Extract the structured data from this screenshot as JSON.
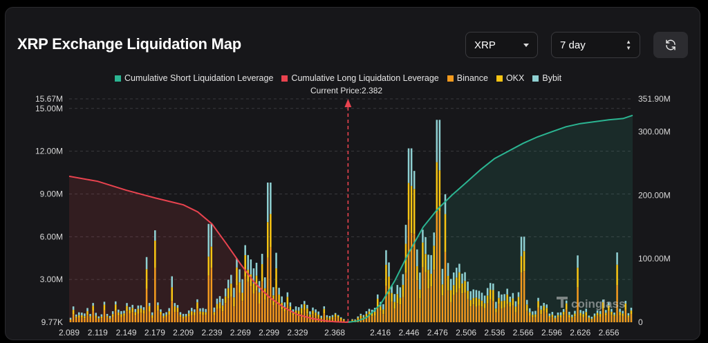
{
  "header": {
    "title": "XRP Exchange Liquidation Map",
    "coin_select": "XRP",
    "range_select": "7 day",
    "up_glyph": "▲",
    "down_glyph": "▼"
  },
  "legend": [
    {
      "label": "Cumulative Short Liquidation Leverage",
      "color": "#2bb592"
    },
    {
      "label": "Cumulative Long Liquidation Leverage",
      "color": "#e9434f"
    },
    {
      "label": "Binance",
      "color": "#f39a1e"
    },
    {
      "label": "OKX",
      "color": "#f7c413"
    },
    {
      "label": "Bybit",
      "color": "#8fd0d2"
    }
  ],
  "current_price_label": "Current Price:2.382",
  "watermark": "coinglass",
  "icons": {
    "refresh": "refresh-icon",
    "watermark_logo": "coinglass-logo-icon"
  },
  "chart_data": {
    "type": "bar",
    "current_price": 2.382,
    "x_ticks": [
      "2.089",
      "2.119",
      "2.149",
      "2.179",
      "2.209",
      "2.239",
      "2.269",
      "2.299",
      "2.329",
      "2.368",
      "2.416",
      "2.446",
      "2.476",
      "2.506",
      "2.536",
      "2.566",
      "2.596",
      "2.626",
      "2.656"
    ],
    "y_left_ticks": [
      "9.77K",
      "3.00M",
      "6.00M",
      "9.00M",
      "12.00M",
      "15.00M",
      "15.67M"
    ],
    "y_right_ticks": [
      "0",
      "100.00M",
      "200.00M",
      "300.00M",
      "351.90M"
    ],
    "y_left_range": [
      0,
      15.67
    ],
    "y_right_range": [
      0,
      351.9
    ],
    "series": [
      {
        "name": "Cumulative Long Liquidation Leverage",
        "type": "area",
        "axis": "right",
        "x": [
          2.089,
          2.119,
          2.149,
          2.179,
          2.209,
          2.224,
          2.239,
          2.254,
          2.269,
          2.284,
          2.299,
          2.314,
          2.329,
          2.344,
          2.359,
          2.368,
          2.376,
          2.382
        ],
        "y": [
          230,
          222,
          208,
          196,
          185,
          174,
          155,
          124,
          92,
          62,
          40,
          24,
          12,
          6,
          2,
          0.8,
          0.2,
          0
        ]
      },
      {
        "name": "Cumulative Short Liquidation Leverage",
        "type": "area",
        "axis": "right",
        "x": [
          2.382,
          2.392,
          2.402,
          2.416,
          2.431,
          2.446,
          2.461,
          2.476,
          2.491,
          2.506,
          2.521,
          2.536,
          2.551,
          2.566,
          2.581,
          2.596,
          2.611,
          2.626,
          2.641,
          2.656,
          2.671,
          2.681
        ],
        "y": [
          0,
          2,
          8,
          28,
          65,
          110,
          150,
          178,
          200,
          220,
          240,
          258,
          270,
          282,
          292,
          300,
          308,
          313,
          316,
          319,
          321,
          326
        ]
      },
      {
        "name": "Binance",
        "axis": "left",
        "note": "stacked per-price-level bars (see generated series)"
      },
      {
        "name": "OKX",
        "axis": "left"
      },
      {
        "name": "Bybit",
        "axis": "left"
      }
    ],
    "bar_profile": {
      "price_range": [
        2.089,
        2.681
      ],
      "peaks": [
        {
          "x": 2.299,
          "total": 9.8
        },
        {
          "x": 2.236,
          "total": 6.9
        },
        {
          "x": 2.446,
          "total": 12.2
        },
        {
          "x": 2.476,
          "total": 14.2
        },
        {
          "x": 2.566,
          "total": 6.0
        }
      ]
    }
  }
}
